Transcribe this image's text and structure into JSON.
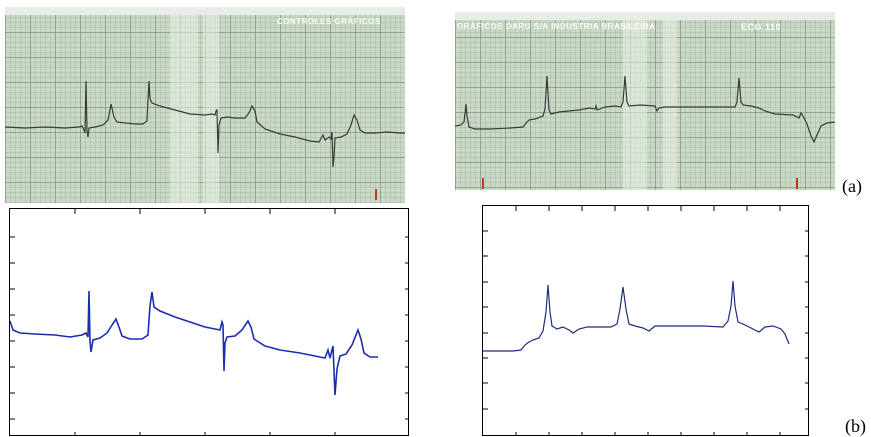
{
  "paper_left": {
    "header_text": "CONTROLES GRÁFICOS"
  },
  "paper_right": {
    "header_text": "GRÁFICOS DARU S/A INDUSTRIA BRASILEIRA",
    "model_text": "ECG 110"
  },
  "labels": {
    "a": "(a)",
    "b": "(b)"
  },
  "colors": {
    "paper_trace": "#3a3a3a",
    "digital_trace_left": "#1a2fb0",
    "digital_trace_right": "#1f2d80",
    "marker": "#c0392b"
  }
}
